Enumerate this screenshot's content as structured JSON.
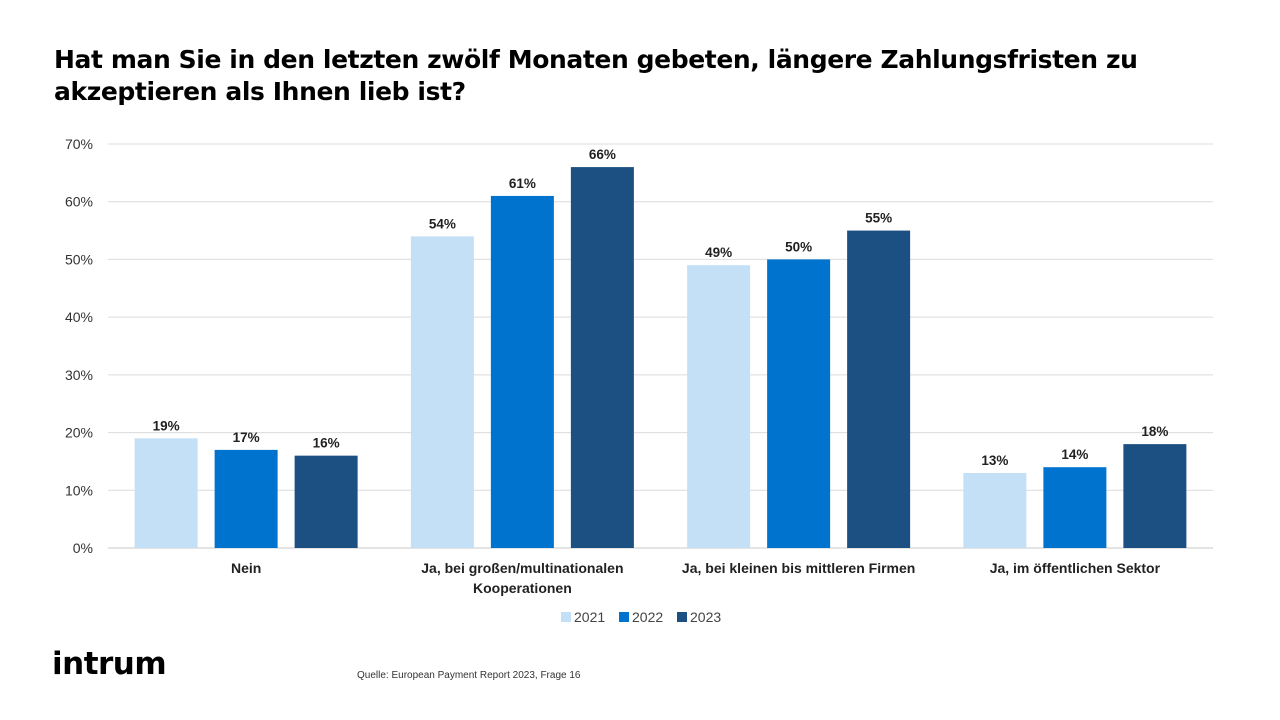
{
  "title": "Hat man Sie in den letzten zwölf Monaten gebeten, längere Zahlungsfristen zu akzeptieren als Ihnen lieb ist?",
  "logo": "intrum",
  "source": "Quelle: European Payment Report 2023, Frage 16",
  "chart_data": {
    "type": "bar",
    "categories": [
      [
        "Nein"
      ],
      [
        "Ja, bei großen/multinationalen",
        "Kooperationen"
      ],
      [
        "Ja, bei kleinen bis mittleren Firmen"
      ],
      [
        "Ja, im öffentlichen Sektor"
      ]
    ],
    "series": [
      {
        "name": "2021",
        "color": "#c3e0f7",
        "values": [
          19,
          54,
          49,
          13
        ]
      },
      {
        "name": "2022",
        "color": "#0073cf",
        "values": [
          17,
          61,
          50,
          14
        ]
      },
      {
        "name": "2023",
        "color": "#1c4f82",
        "values": [
          16,
          66,
          55,
          18
        ]
      }
    ],
    "value_suffix": "%",
    "ylim": [
      0,
      70
    ],
    "yticks": [
      "0%",
      "10%",
      "20%",
      "30%",
      "40%",
      "50%",
      "60%",
      "70%"
    ],
    "grid": true,
    "legend": "bottom-center"
  }
}
